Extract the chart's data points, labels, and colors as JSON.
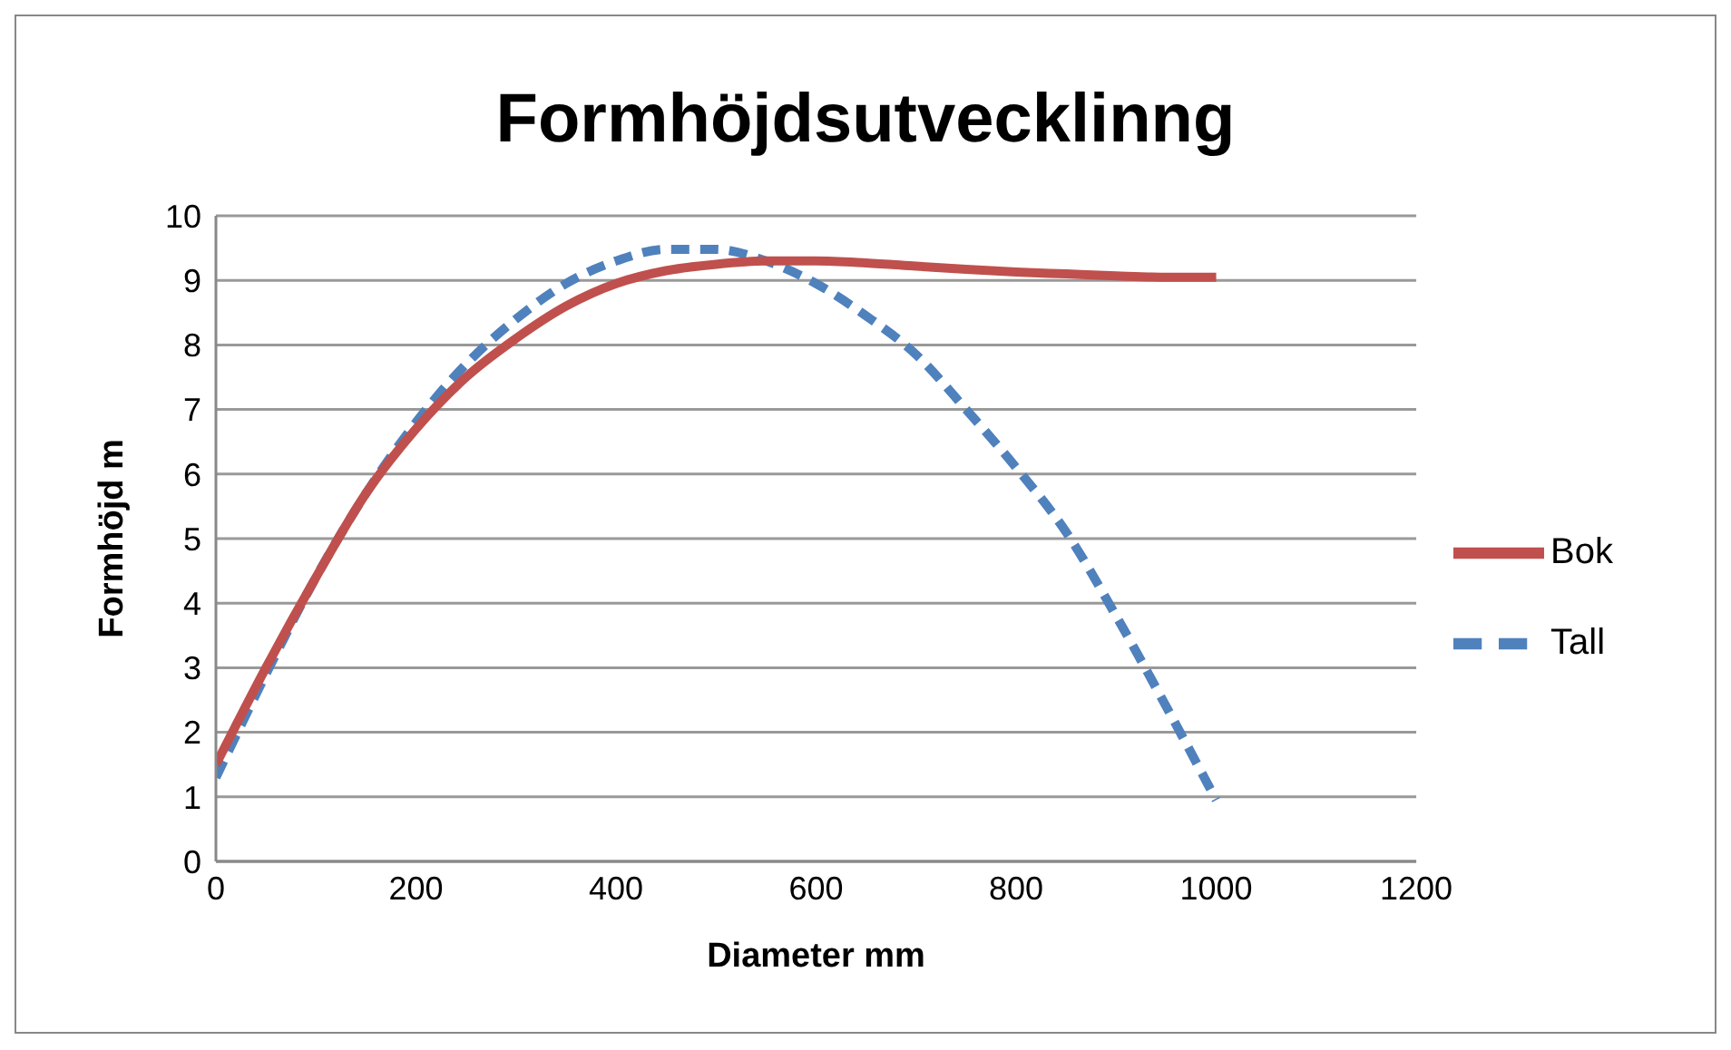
{
  "chart_data": {
    "type": "line",
    "title": "Formhöjdsutvecklinng",
    "xlabel": "Diameter mm",
    "ylabel": "Formhöjd m",
    "x": [
      0,
      50,
      100,
      150,
      200,
      250,
      300,
      350,
      400,
      450,
      500,
      550,
      600,
      650,
      700,
      750,
      800,
      850,
      900,
      950,
      1000
    ],
    "series": [
      {
        "name": "Tall",
        "color": "#4f81bd",
        "line_style": "dashed",
        "values": [
          1.3,
          2.9,
          4.4,
          5.7,
          6.8,
          7.7,
          8.4,
          8.95,
          9.3,
          9.48,
          9.48,
          9.3,
          8.95,
          8.45,
          7.85,
          7.0,
          6.1,
          5.1,
          3.8,
          2.4,
          0.95
        ]
      },
      {
        "name": "Bok",
        "color": "#c0504d",
        "line_style": "solid",
        "values": [
          1.5,
          3.0,
          4.4,
          5.7,
          6.7,
          7.5,
          8.1,
          8.6,
          8.95,
          9.15,
          9.25,
          9.3,
          9.3,
          9.27,
          9.22,
          9.17,
          9.13,
          9.1,
          9.07,
          9.05,
          9.05
        ]
      }
    ],
    "xlim": [
      0,
      1200
    ],
    "xticks": [
      0,
      200,
      400,
      600,
      800,
      1000,
      1200
    ],
    "ylim": [
      0,
      10
    ],
    "yticks": [
      0,
      1,
      2,
      3,
      4,
      5,
      6,
      7,
      8,
      9,
      10
    ],
    "grid": "y",
    "legend": "right",
    "marker": "none"
  }
}
